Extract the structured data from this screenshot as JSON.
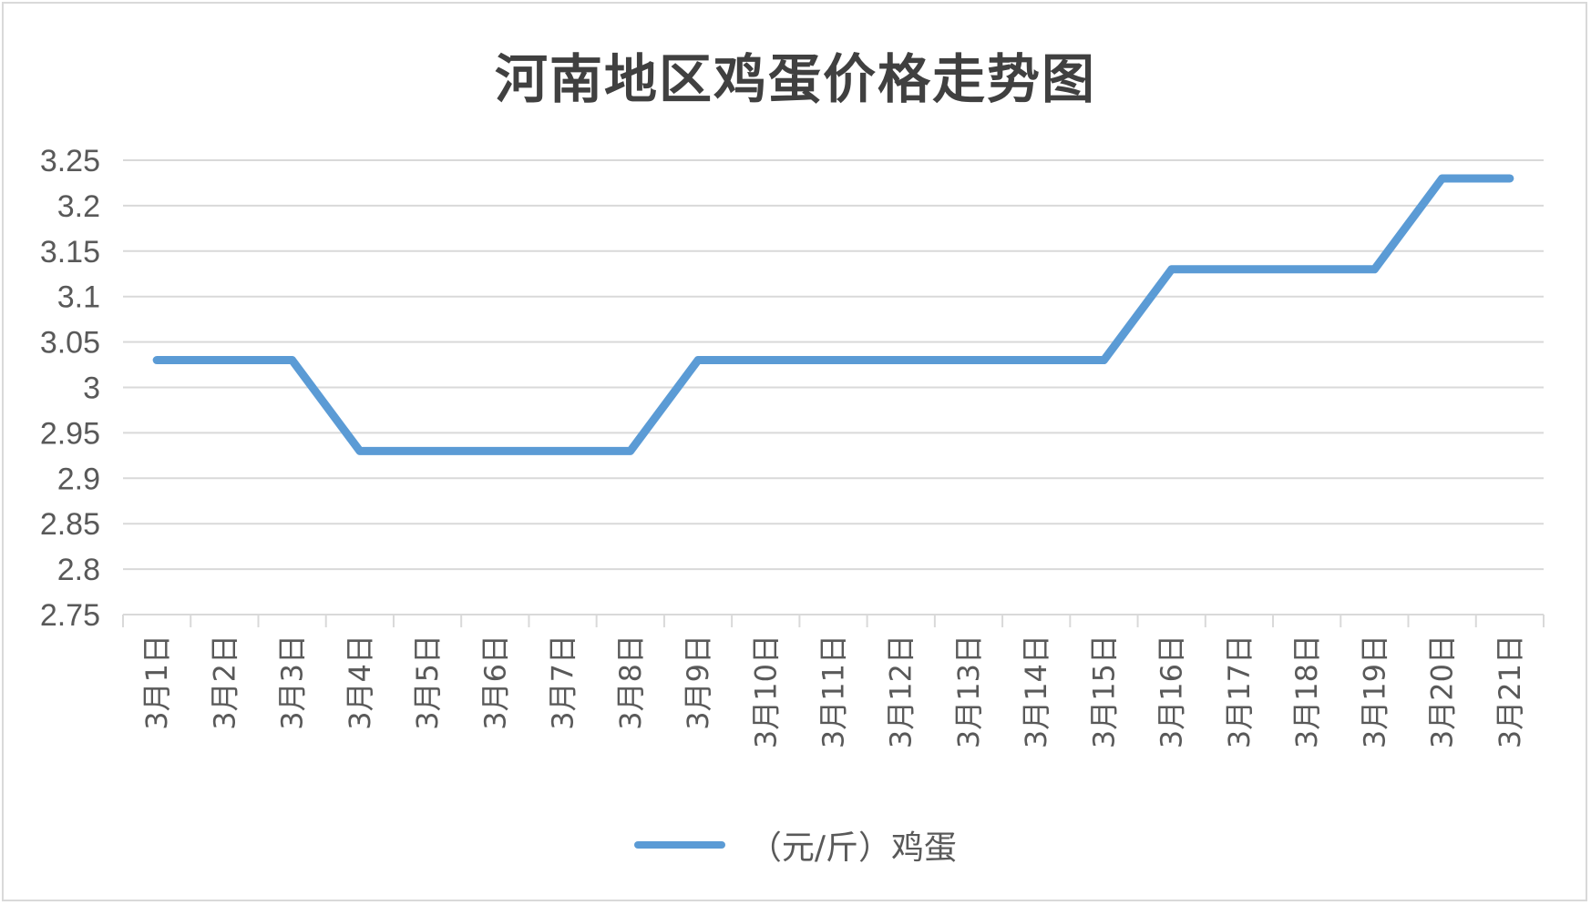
{
  "chart_data": {
    "type": "line",
    "title": "河南地区鸡蛋价格走势图",
    "categories": [
      "3月1日",
      "3月2日",
      "3月3日",
      "3月4日",
      "3月5日",
      "3月6日",
      "3月7日",
      "3月8日",
      "3月9日",
      "3月10日",
      "3月11日",
      "3月12日",
      "3月13日",
      "3月14日",
      "3月15日",
      "3月16日",
      "3月17日",
      "3月18日",
      "3月19日",
      "3月20日",
      "3月21日"
    ],
    "series": [
      {
        "name": "（元/斤）鸡蛋",
        "color": "#5B9BD5",
        "values": [
          3.03,
          3.03,
          3.03,
          2.93,
          2.93,
          2.93,
          2.93,
          2.93,
          3.03,
          3.03,
          3.03,
          3.03,
          3.03,
          3.03,
          3.03,
          3.13,
          3.13,
          3.13,
          3.13,
          3.23,
          3.23
        ]
      }
    ],
    "ylim": [
      2.75,
      3.25
    ],
    "yticks": [
      "2.75",
      "2.8",
      "2.85",
      "2.9",
      "2.95",
      "3",
      "3.05",
      "3.1",
      "3.15",
      "3.2",
      "3.25"
    ],
    "grid": true,
    "legend_position": "bottom"
  },
  "colors": {
    "line": "#5B9BD5",
    "grid": "#d9d9d9",
    "text": "#595959"
  }
}
